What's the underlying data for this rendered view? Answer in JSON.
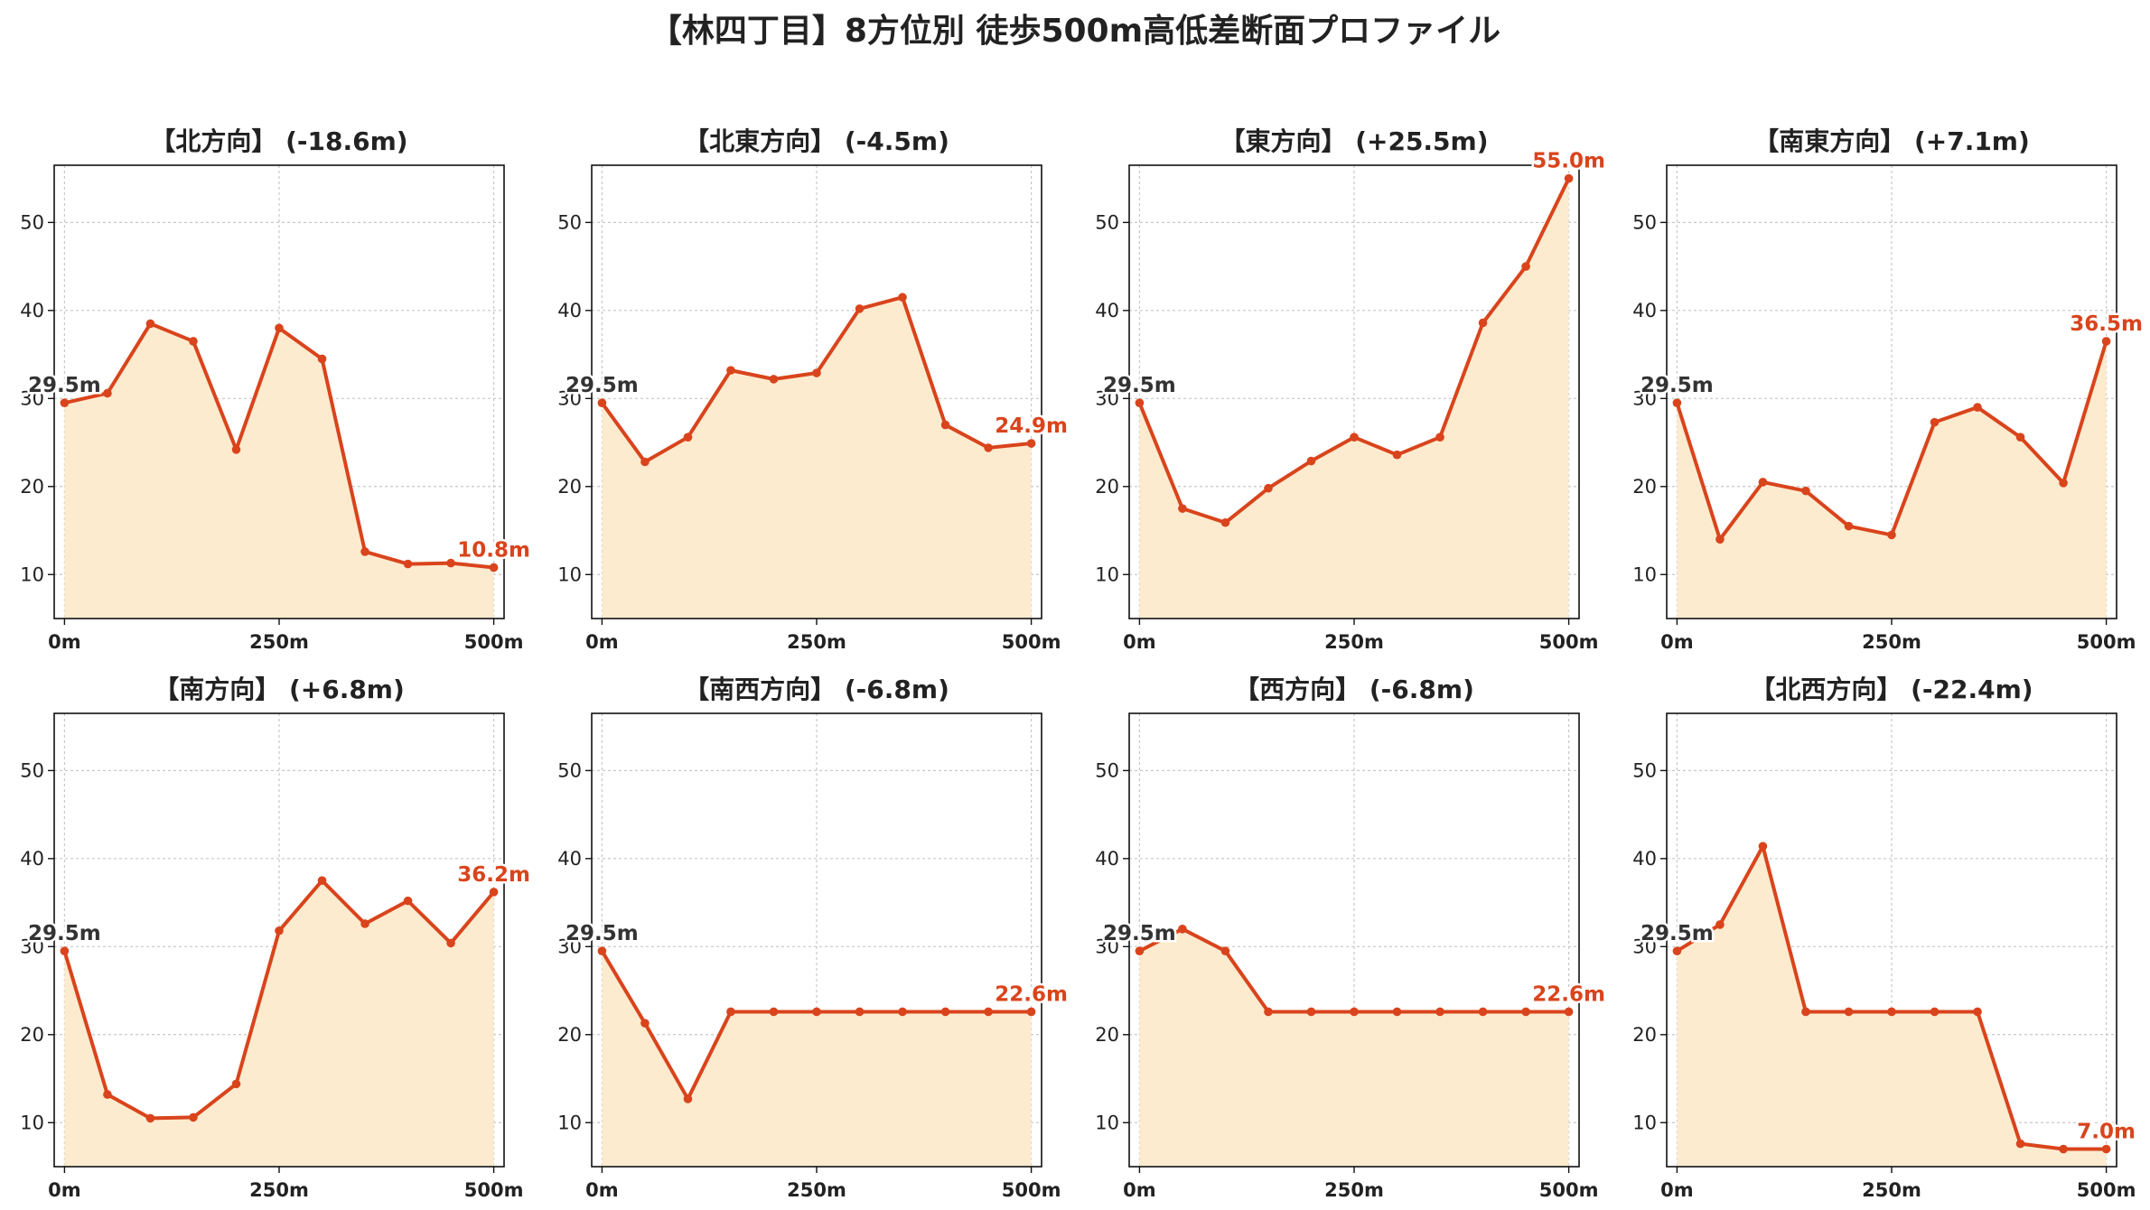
{
  "colors": {
    "line": "#d9441c",
    "fill": "#fdebcf",
    "grid": "#c8c8c8",
    "frame": "#111111"
  },
  "chart_data": {
    "type": "line",
    "title": "【林四丁目】8方位別 徒歩500m高低差断面プロファイル",
    "x": [
      0,
      50,
      100,
      150,
      200,
      250,
      300,
      350,
      400,
      450,
      500
    ],
    "xticks": [
      0,
      250,
      500
    ],
    "xtick_labels": [
      "0m",
      "250m",
      "500m"
    ],
    "yticks": [
      10,
      20,
      30,
      40,
      50
    ],
    "ylim": [
      5,
      56.5
    ],
    "xlim": [
      -12,
      512
    ],
    "grid": true,
    "panels": [
      {
        "title": "【北方向】 (-18.6m)",
        "values": [
          29.5,
          30.6,
          38.5,
          36.5,
          24.2,
          38.0,
          34.5,
          12.6,
          11.2,
          11.3,
          10.8
        ],
        "start_label": "29.5m",
        "end_label": "10.8m"
      },
      {
        "title": "【北東方向】 (-4.5m)",
        "values": [
          29.5,
          22.8,
          25.6,
          33.2,
          32.2,
          32.9,
          40.2,
          41.5,
          27.0,
          24.4,
          24.9
        ],
        "start_label": "29.5m",
        "end_label": "24.9m"
      },
      {
        "title": "【東方向】 (+25.5m)",
        "values": [
          29.5,
          17.5,
          15.9,
          19.8,
          22.9,
          25.6,
          23.6,
          25.6,
          38.6,
          45.0,
          55.0
        ],
        "start_label": "29.5m",
        "end_label": "55.0m"
      },
      {
        "title": "【南東方向】 (+7.1m)",
        "values": [
          29.5,
          14.0,
          20.5,
          19.5,
          15.5,
          14.5,
          27.3,
          29.0,
          25.6,
          20.4,
          36.5
        ],
        "start_label": "29.5m",
        "end_label": "36.5m"
      },
      {
        "title": "【南方向】 (+6.8m)",
        "values": [
          29.5,
          13.2,
          10.5,
          10.6,
          14.4,
          31.8,
          37.5,
          32.6,
          35.2,
          30.4,
          36.2
        ],
        "start_label": "29.5m",
        "end_label": "36.2m"
      },
      {
        "title": "【南西方向】 (-6.8m)",
        "values": [
          29.5,
          21.3,
          12.7,
          22.6,
          22.6,
          22.6,
          22.6,
          22.6,
          22.6,
          22.6,
          22.6
        ],
        "start_label": "29.5m",
        "end_label": "22.6m"
      },
      {
        "title": "【西方向】 (-6.8m)",
        "values": [
          29.5,
          32.0,
          29.5,
          22.6,
          22.6,
          22.6,
          22.6,
          22.6,
          22.6,
          22.6,
          22.6
        ],
        "start_label": "29.5m",
        "end_label": "22.6m"
      },
      {
        "title": "【北西方向】 (-22.4m)",
        "values": [
          29.5,
          32.5,
          41.4,
          22.6,
          22.6,
          22.6,
          22.6,
          22.6,
          7.6,
          7.0,
          7.0
        ],
        "start_label": "29.5m",
        "end_label": "7.0m"
      }
    ]
  }
}
